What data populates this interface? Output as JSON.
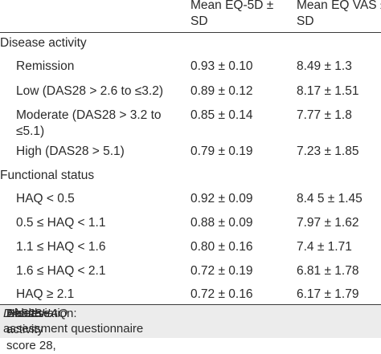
{
  "header": {
    "col_eq5d_line1": "Mean EQ-5D ±",
    "col_eq5d_line2": "SD",
    "col_vas_line1": "Mean EQ VAS ±",
    "col_vas_line2": "SD"
  },
  "sections": [
    {
      "title": "Disease activity",
      "rows": [
        {
          "label": "Remission",
          "eq5d": "0.93 ± 0.10",
          "vas": "8.49 ± 1.3"
        },
        {
          "label": "Low (DAS28 > 2.6 to ≤3.2)",
          "eq5d": "0.89 ± 0.12",
          "vas": "8.17 ± 1.51"
        },
        {
          "label_line1": "Moderate (DAS28 > 3.2 to",
          "label_line2": "≤5.1)",
          "eq5d": "0.85 ± 0.14",
          "vas": "7.77 ± 1.8"
        },
        {
          "label": "High (DAS28 > 5.1)",
          "eq5d": "0.79 ± 0.19",
          "vas": "7.23 ± 1.85"
        }
      ]
    },
    {
      "title": "Functional status",
      "rows": [
        {
          "label": "HAQ <  0.5",
          "eq5d": "0.92 ± 0.09",
          "vas": "8.4 5 ± 1.45"
        },
        {
          "label": "0.5 ≤ HAQ < 1.1",
          "eq5d": "0.88 ± 0.09",
          "vas": "7.97 ± 1.62"
        },
        {
          "label": "1.1 ≤ HAQ < 1.6",
          "eq5d": "0.80 ± 0.16",
          "vas": "7.4 ± 1.71"
        },
        {
          "label": "1.6 ≤ HAQ < 2.1",
          "eq5d": "0.72 ± 0.19",
          "vas": "6.81 ± 1.78"
        },
        {
          "label": "HAQ ≥ 2.1",
          "eq5d": "0.72 ± 0.16",
          "vas": "6.17 ± 1.79"
        }
      ]
    }
  ],
  "footnote": {
    "prefix": "Abbreviation: - ",
    "abbr1": "DAS28",
    "def1": " Disease activity score 28, ",
    "abbr2": "HAQ",
    "def2": " Health",
    "line2": "assessment questionnaire"
  }
}
